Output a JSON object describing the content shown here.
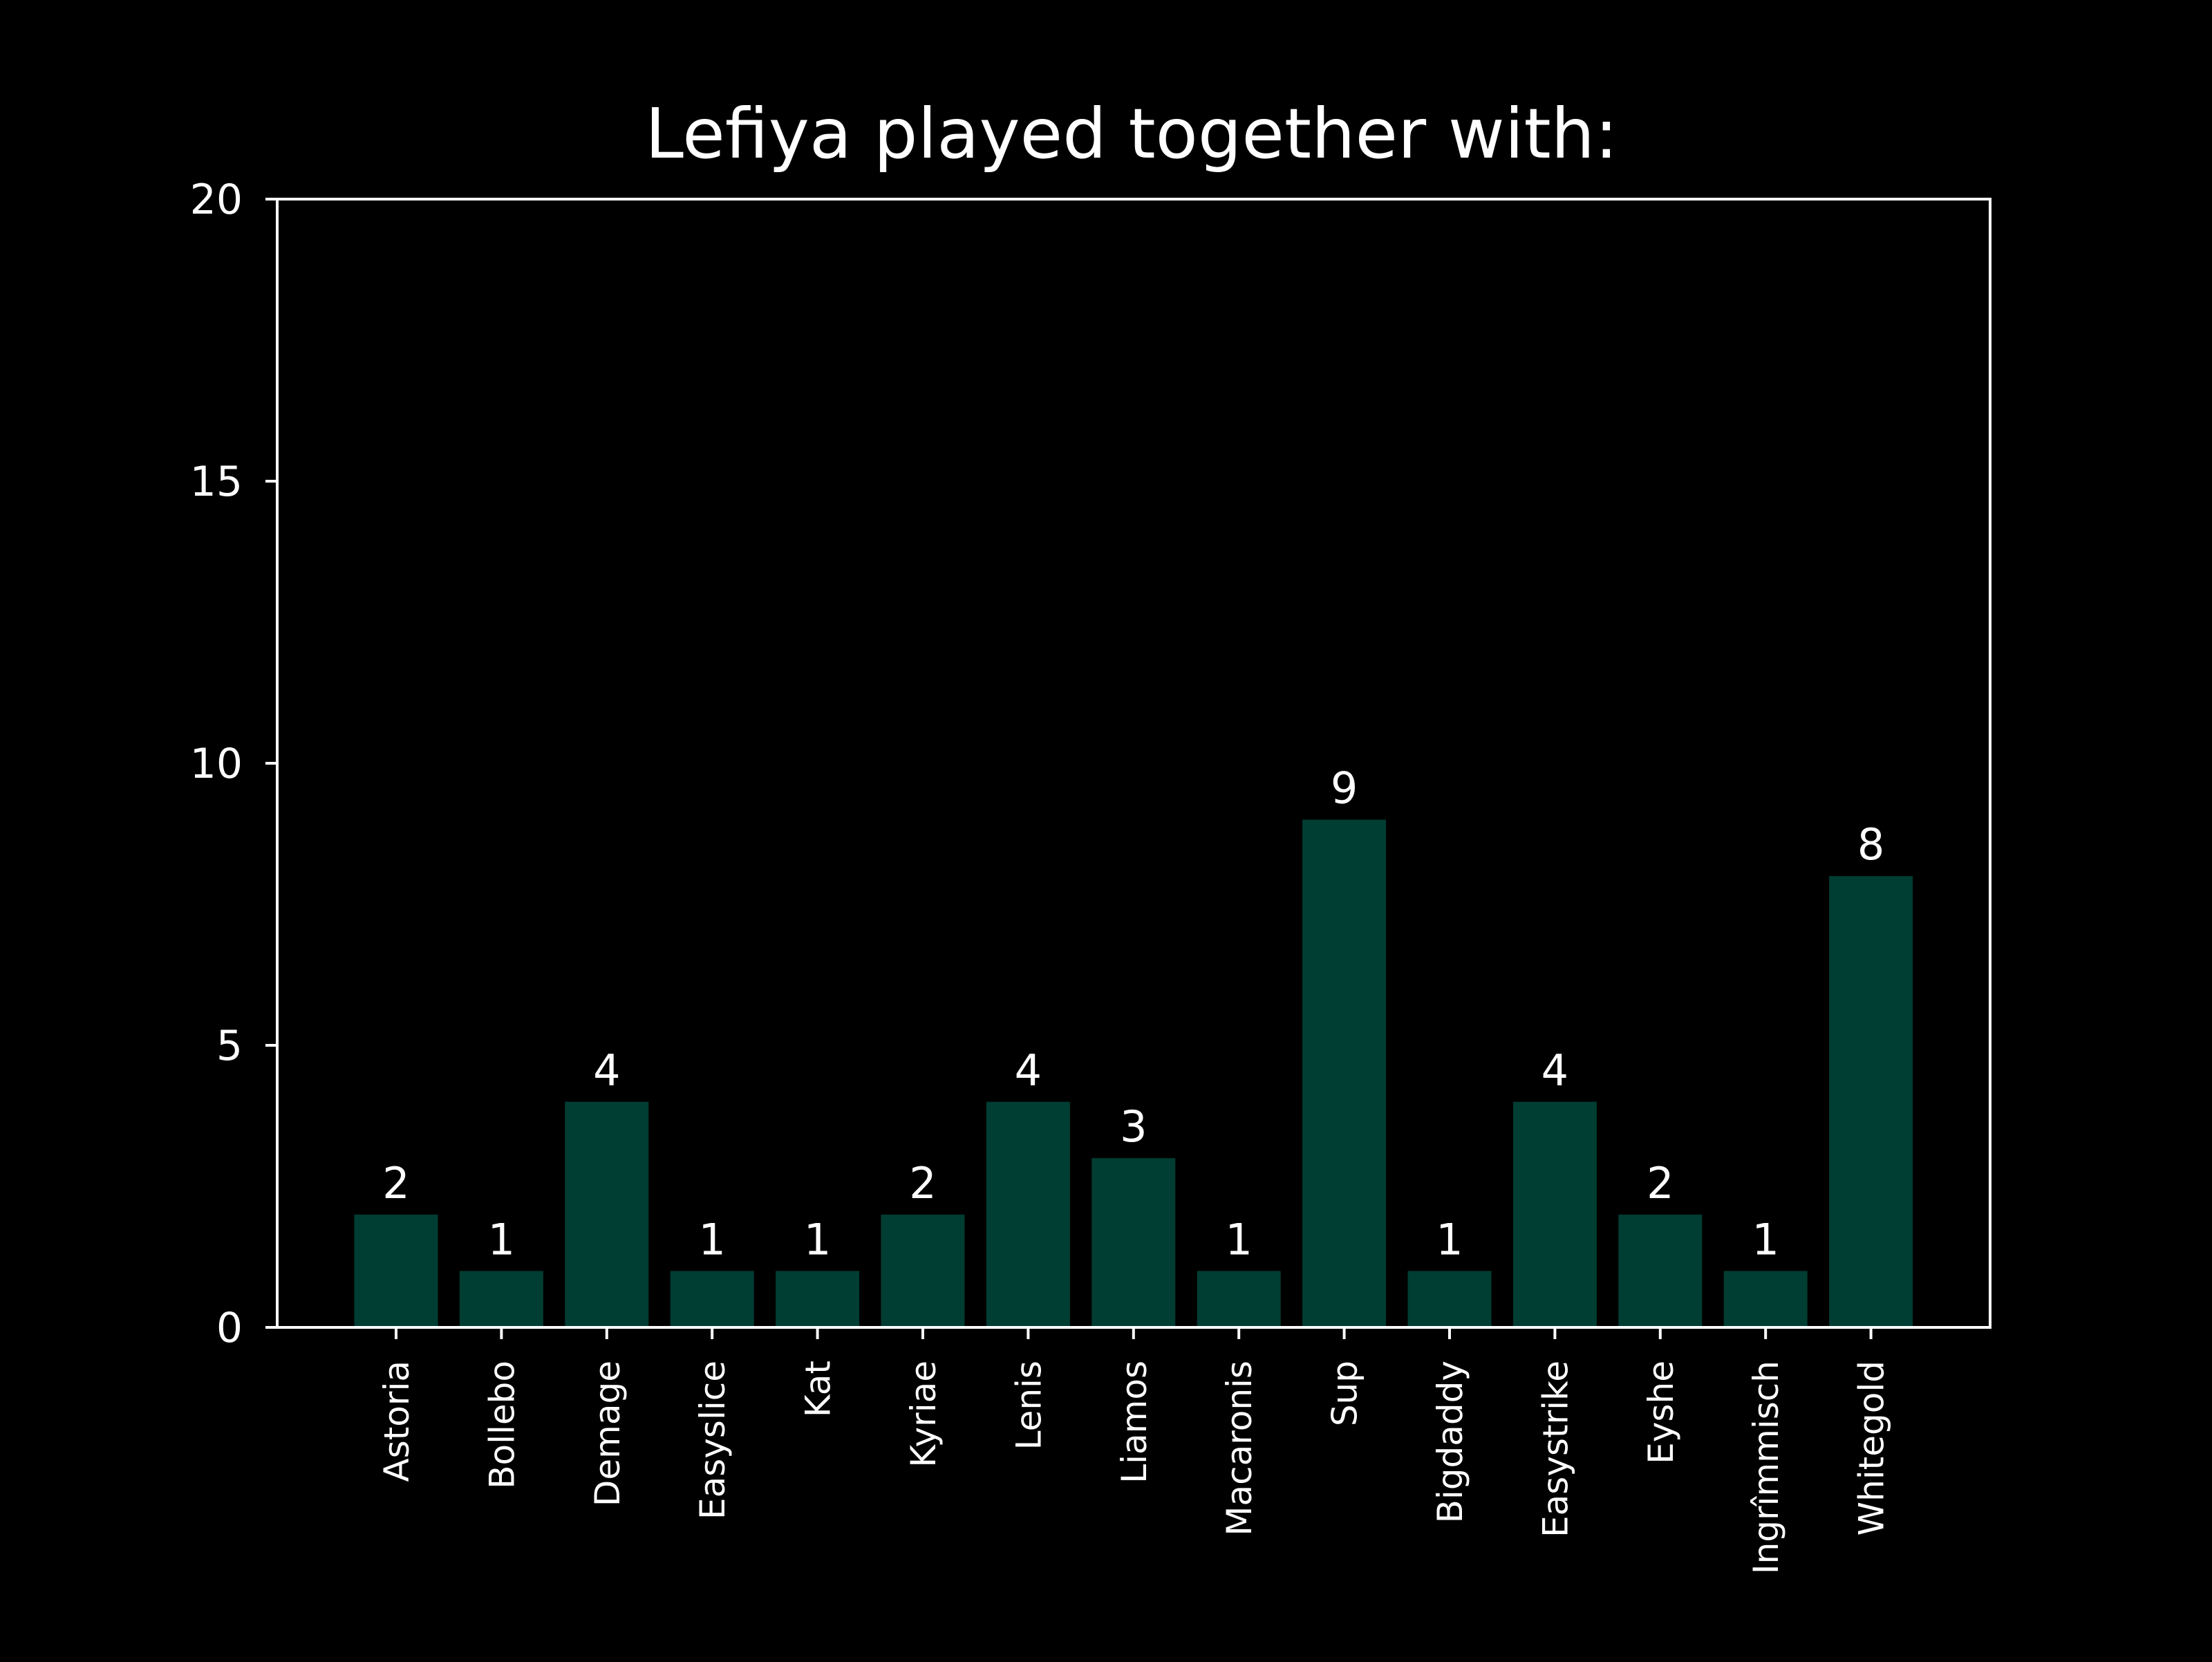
{
  "chart_data": {
    "type": "bar",
    "title": "Lefiya played together with:",
    "xlabel": "",
    "ylabel": "",
    "categories": [
      "Astoria",
      "Bollebo",
      "Demage",
      "Easyslice",
      "Kat",
      "Kyriae",
      "Lenis",
      "Liamos",
      "Macaronis",
      "Sup",
      "Bigdaddy",
      "Easystrike",
      "Eyshe",
      "Ingrîmmisch",
      "Whitegold"
    ],
    "values": [
      2,
      1,
      4,
      1,
      1,
      2,
      4,
      3,
      1,
      9,
      1,
      4,
      2,
      1,
      8
    ],
    "data_labels": [
      "2",
      "1",
      "4",
      "1",
      "1",
      "2",
      "4",
      "3",
      "1",
      "9",
      "1",
      "4",
      "2",
      "1",
      "8"
    ],
    "ylim": [
      0,
      20
    ],
    "yticks": [
      0,
      5,
      10,
      15,
      20
    ],
    "grid": false,
    "legend": "none",
    "colors": {
      "background": "#000000",
      "bar": "#003d33",
      "axes": "#ffffff",
      "text": "#ffffff"
    }
  }
}
